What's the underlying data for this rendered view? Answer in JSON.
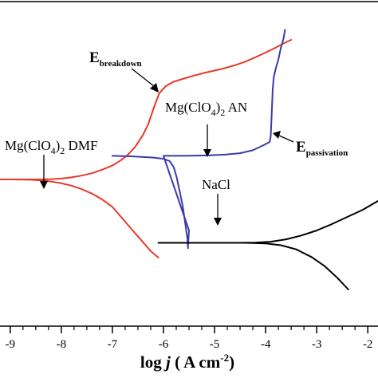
{
  "chart_data": {
    "type": "line",
    "title": "",
    "xlabel": "log j (A cm-2)",
    "ylabel": "",
    "xlim": [
      -9.2,
      -1.8
    ],
    "ylim": [
      0,
      1
    ],
    "x_ticks": [
      -9,
      -8,
      -7,
      -6,
      -5,
      -4,
      -3,
      -2
    ],
    "tick_labels": [
      "-9",
      "-8",
      "-7",
      "-6",
      "-5",
      "-4",
      "-3",
      "-2"
    ],
    "grid": false,
    "legend": "none",
    "x_title_parts": {
      "prefix": "log ",
      "var": "j",
      "open": " ( A cm",
      "sup": "-2",
      "close": ")"
    },
    "series": [
      {
        "color": "#e8392a",
        "points": [
          [
            -6.1,
            0.208
          ],
          [
            -6.25,
            0.23
          ],
          [
            -6.4,
            0.26
          ],
          [
            -6.55,
            0.29
          ],
          [
            -6.7,
            0.32
          ],
          [
            -6.85,
            0.35
          ],
          [
            -7.0,
            0.38
          ],
          [
            -7.2,
            0.405
          ],
          [
            -7.4,
            0.425
          ],
          [
            -7.6,
            0.44
          ],
          [
            -7.8,
            0.452
          ],
          [
            -8.0,
            0.46
          ],
          [
            -8.2,
            0.466
          ],
          [
            -8.4,
            0.47
          ],
          [
            -8.6,
            0.472
          ],
          [
            -9.0,
            0.473
          ],
          [
            -9.3,
            0.473
          ],
          [
            -8.4,
            0.473
          ],
          [
            -8.2,
            0.474
          ],
          [
            -8.0,
            0.476
          ],
          [
            -7.8,
            0.48
          ],
          [
            -7.6,
            0.486
          ],
          [
            -7.4,
            0.494
          ],
          [
            -7.2,
            0.506
          ],
          [
            -7.0,
            0.52
          ],
          [
            -6.85,
            0.536
          ],
          [
            -6.7,
            0.556
          ],
          [
            -6.55,
            0.584
          ],
          [
            -6.4,
            0.624
          ],
          [
            -6.3,
            0.66
          ],
          [
            -6.18,
            0.72
          ],
          [
            -6.08,
            0.765
          ],
          [
            -5.95,
            0.79
          ],
          [
            -5.8,
            0.804
          ],
          [
            -5.6,
            0.815
          ],
          [
            -5.4,
            0.825
          ],
          [
            -5.2,
            0.834
          ],
          [
            -5.0,
            0.842
          ],
          [
            -4.8,
            0.85
          ],
          [
            -4.6,
            0.86
          ],
          [
            -4.4,
            0.872
          ],
          [
            -4.2,
            0.887
          ],
          [
            -4.0,
            0.903
          ],
          [
            -3.8,
            0.92
          ],
          [
            -3.6,
            0.938
          ],
          [
            -3.5,
            0.946
          ]
        ]
      },
      {
        "color": "#3c3aa8",
        "points": [
          [
            -7.0,
            0.553
          ],
          [
            -6.8,
            0.552
          ],
          [
            -6.6,
            0.551
          ],
          [
            -6.4,
            0.549
          ],
          [
            -6.2,
            0.547
          ],
          [
            -6.0,
            0.543
          ],
          [
            -5.88,
            0.535
          ],
          [
            -5.8,
            0.515
          ],
          [
            -5.74,
            0.48
          ],
          [
            -5.68,
            0.43
          ],
          [
            -5.62,
            0.38
          ],
          [
            -5.57,
            0.32
          ],
          [
            -5.53,
            0.27
          ],
          [
            -5.52,
            0.24
          ],
          [
            -5.52,
            0.245
          ],
          [
            -5.5,
            0.3
          ],
          [
            -6.0,
            0.553
          ],
          [
            -5.6,
            0.553
          ],
          [
            -5.2,
            0.554
          ],
          [
            -4.8,
            0.557
          ],
          [
            -4.5,
            0.562
          ],
          [
            -4.25,
            0.572
          ],
          [
            -4.05,
            0.588
          ],
          [
            -3.92,
            0.6
          ],
          [
            -3.9,
            0.62
          ],
          [
            -3.88,
            0.7
          ],
          [
            -3.86,
            0.78
          ],
          [
            -3.84,
            0.82
          ],
          [
            -3.8,
            0.85
          ],
          [
            -3.75,
            0.88
          ],
          [
            -3.7,
            0.92
          ],
          [
            -3.65,
            0.95
          ],
          [
            -3.62,
            0.98
          ]
        ]
      },
      {
        "color": "#000000",
        "points": [
          [
            -2.38,
            0.1
          ],
          [
            -2.6,
            0.14
          ],
          [
            -2.85,
            0.18
          ],
          [
            -3.1,
            0.21
          ],
          [
            -3.4,
            0.236
          ],
          [
            -3.7,
            0.25
          ],
          [
            -4.0,
            0.256
          ],
          [
            -4.4,
            0.258
          ],
          [
            -5.0,
            0.258
          ],
          [
            -5.6,
            0.258
          ],
          [
            -6.1,
            0.258
          ],
          [
            -4.6,
            0.258
          ],
          [
            -4.2,
            0.259
          ],
          [
            -3.9,
            0.262
          ],
          [
            -3.6,
            0.27
          ],
          [
            -3.3,
            0.283
          ],
          [
            -3.0,
            0.3
          ],
          [
            -2.7,
            0.322
          ],
          [
            -2.4,
            0.346
          ],
          [
            -2.1,
            0.37
          ],
          [
            -1.8,
            0.4
          ]
        ]
      }
    ],
    "annotations": [
      {
        "id": "dmf",
        "text_main": "Mg(ClO",
        "sub1": "4",
        "mid": ")",
        "sub2": "2",
        "tail": " DMF"
      },
      {
        "id": "an",
        "text_main": "Mg(ClO",
        "sub1": "4",
        "mid": ")",
        "sub2": "2",
        "tail": " AN"
      },
      {
        "id": "nacl",
        "text": "NaCl"
      },
      {
        "id": "breakdown",
        "big": "E",
        "sub": "breakdown"
      },
      {
        "id": "passivation",
        "big": "E",
        "sub": "passivation"
      }
    ]
  }
}
